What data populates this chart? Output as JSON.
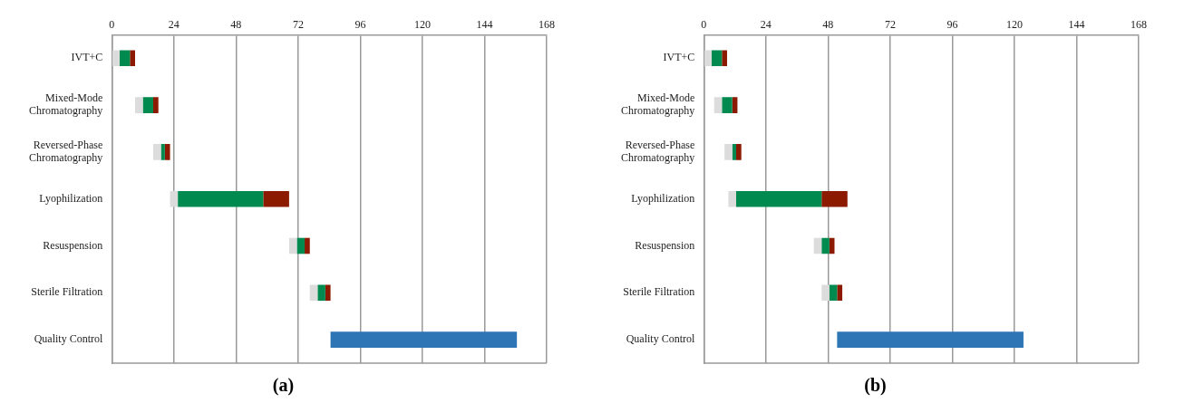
{
  "chart_data": [
    {
      "type": "bar",
      "orientation": "horizontal",
      "title": "(a)",
      "categories": [
        "IVT+C",
        "Mixed-Mode Chromatography",
        "Reversed-Phase Chromatography",
        "Lyophilization",
        "Resuspension",
        "Sterile Filtration",
        "Quality Control"
      ],
      "series": [
        {
          "color": "#dcdcdc",
          "base": [
            0,
            9,
            16,
            22.5,
            68.5,
            76.5,
            null
          ],
          "values": [
            3,
            3,
            3,
            3,
            3,
            3,
            null
          ]
        },
        {
          "color": "#008a50",
          "base": [
            3,
            12,
            19,
            25.5,
            71.5,
            79.5,
            null
          ],
          "values": [
            4,
            4,
            1.5,
            33,
            3,
            3,
            null
          ]
        },
        {
          "color": "#8b1a00",
          "base": [
            7,
            16,
            20.5,
            58.5,
            74.5,
            82.5,
            null
          ],
          "values": [
            2,
            2,
            2,
            10,
            2,
            2,
            null
          ]
        },
        {
          "color": "#2e75b6",
          "base": [
            null,
            null,
            null,
            null,
            null,
            null,
            84.5
          ],
          "values": [
            null,
            null,
            null,
            null,
            null,
            null,
            72
          ]
        }
      ],
      "xlim": [
        0,
        168
      ],
      "xticks": [
        0,
        24,
        48,
        72,
        96,
        120,
        144,
        168
      ],
      "grid": "x",
      "legend": false
    },
    {
      "type": "bar",
      "orientation": "horizontal",
      "title": "(b)",
      "categories": [
        "IVT+C",
        "Mixed-Mode Chromatography",
        "Reversed-Phase Chromatography",
        "Lyophilization",
        "Resuspension",
        "Sterile Filtration",
        "Quality Control"
      ],
      "series": [
        {
          "color": "#dcdcdc",
          "base": [
            0,
            4,
            8,
            9.5,
            42.5,
            45.5,
            null
          ],
          "values": [
            3,
            3,
            3,
            3,
            3,
            3,
            null
          ]
        },
        {
          "color": "#008a50",
          "base": [
            3,
            7,
            11,
            12.5,
            45.5,
            48.5,
            null
          ],
          "values": [
            4,
            4,
            1.5,
            33,
            3,
            3,
            null
          ]
        },
        {
          "color": "#8b1a00",
          "base": [
            7,
            11,
            12.5,
            45.5,
            48.5,
            51.5,
            null
          ],
          "values": [
            2,
            2,
            2,
            10,
            2,
            2,
            null
          ]
        },
        {
          "color": "#2e75b6",
          "base": [
            null,
            null,
            null,
            null,
            null,
            null,
            51.5
          ],
          "values": [
            null,
            null,
            null,
            null,
            null,
            null,
            72
          ]
        }
      ],
      "xlim": [
        0,
        168
      ],
      "xticks": [
        0,
        24,
        48,
        72,
        96,
        120,
        144,
        168
      ],
      "grid": "x",
      "legend": false
    }
  ]
}
